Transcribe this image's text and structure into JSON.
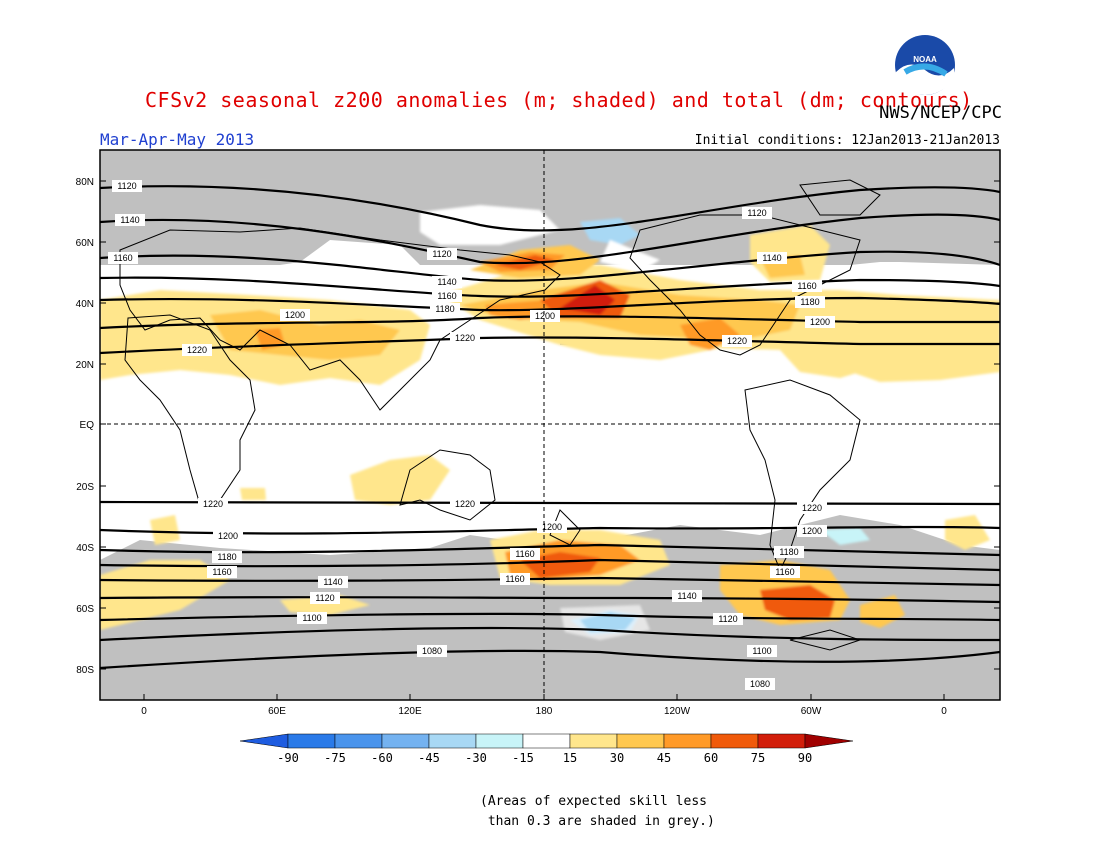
{
  "header": {
    "title": "CFSv2 seasonal z200 anomalies (m; shaded) and total (dm; contours)",
    "agency": "NWS/NCEP/CPC",
    "logo_text": "NOAA",
    "season": "Mar-Apr-May 2013",
    "initial_conditions": "Initial conditions: 12Jan2013-21Jan2013"
  },
  "map": {
    "lat_labels": [
      "80N",
      "60N",
      "40N",
      "20N",
      "EQ",
      "20S",
      "40S",
      "60S",
      "80S"
    ],
    "lon_labels": [
      "0",
      "60E",
      "120E",
      "180",
      "120W",
      "60W",
      "0"
    ],
    "contour_levels": [
      1080,
      1100,
      1120,
      1140,
      1160,
      1180,
      1200,
      1220
    ],
    "colors": {
      "grey_mask": "#c0c0c0",
      "land_outline": "#000000",
      "contour": "#000000"
    }
  },
  "colorbar": {
    "labels": [
      "-90",
      "-75",
      "-60",
      "-45",
      "-30",
      "-15",
      "15",
      "30",
      "45",
      "60",
      "75",
      "90"
    ],
    "colors": [
      "#1e5ce0",
      "#2a7ae8",
      "#4a94ec",
      "#74b2f0",
      "#a8d8f4",
      "#c8f4f8",
      "#ffffff",
      "#ffe68c",
      "#ffc850",
      "#ff9a28",
      "#f05a0a",
      "#d21e0a",
      "#a00000"
    ]
  },
  "footnote": "(Areas of expected skill less\n than 0.3 are shaded in grey.)"
}
